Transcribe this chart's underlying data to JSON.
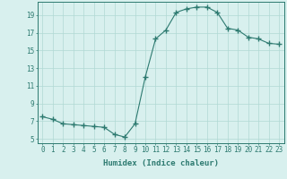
{
  "x": [
    0,
    1,
    2,
    3,
    4,
    5,
    6,
    7,
    8,
    9,
    10,
    11,
    12,
    13,
    14,
    15,
    16,
    17,
    18,
    19,
    20,
    21,
    22,
    23
  ],
  "y": [
    7.5,
    7.2,
    6.7,
    6.6,
    6.5,
    6.4,
    6.3,
    5.5,
    5.2,
    6.7,
    12.0,
    16.3,
    17.3,
    19.3,
    19.7,
    19.9,
    19.9,
    19.3,
    17.5,
    17.3,
    16.5,
    16.3,
    15.8,
    15.7
  ],
  "line_color": "#2d7a70",
  "marker": "+",
  "marker_size": 4,
  "bg_color": "#d8f0ee",
  "grid_color": "#b0d8d4",
  "xlabel": "Humidex (Indice chaleur)",
  "xlim": [
    -0.5,
    23.5
  ],
  "ylim": [
    4.5,
    20.5
  ],
  "yticks": [
    5,
    7,
    9,
    11,
    13,
    15,
    17,
    19
  ],
  "xticks": [
    0,
    1,
    2,
    3,
    4,
    5,
    6,
    7,
    8,
    9,
    10,
    11,
    12,
    13,
    14,
    15,
    16,
    17,
    18,
    19,
    20,
    21,
    22,
    23
  ],
  "xtick_labels": [
    "0",
    "1",
    "2",
    "3",
    "4",
    "5",
    "6",
    "7",
    "8",
    "9",
    "10",
    "11",
    "12",
    "13",
    "14",
    "15",
    "16",
    "17",
    "18",
    "19",
    "20",
    "21",
    "22",
    "23"
  ],
  "tick_color": "#2d7a70",
  "label_fontsize": 6.5,
  "tick_fontsize": 5.5
}
